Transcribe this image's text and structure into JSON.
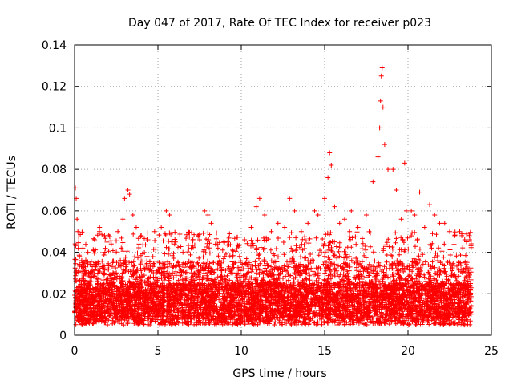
{
  "chart_data": {
    "type": "scatter",
    "title": "Day 047 of 2017, Rate Of TEC Index for receiver p023",
    "xlabel": "GPS time / hours",
    "ylabel": "ROTI / TECUs",
    "xlim": [
      0,
      25
    ],
    "ylim": [
      0,
      0.14
    ],
    "grid": true,
    "marker": "+",
    "color": "#ff0000",
    "x_ticks": [
      {
        "value": 0,
        "label": "0"
      },
      {
        "value": 5,
        "label": "5"
      },
      {
        "value": 10,
        "label": "10"
      },
      {
        "value": 15,
        "label": "15"
      },
      {
        "value": 20,
        "label": "20"
      },
      {
        "value": 25,
        "label": "25"
      }
    ],
    "y_ticks": [
      {
        "value": 0,
        "label": "0"
      },
      {
        "value": 0.02,
        "label": "0.02"
      },
      {
        "value": 0.04,
        "label": "0.04"
      },
      {
        "value": 0.06,
        "label": "0.06"
      },
      {
        "value": 0.08,
        "label": "0.08"
      },
      {
        "value": 0.1,
        "label": "0.1"
      },
      {
        "value": 0.12,
        "label": "0.12"
      },
      {
        "value": 0.14,
        "label": "0.14"
      }
    ],
    "x_range_data": [
      0,
      23.8
    ],
    "series": [
      {
        "name": "ROTI",
        "points": [
          [
            0.05,
            0.071
          ],
          [
            0.1,
            0.066
          ],
          [
            0.15,
            0.056
          ],
          [
            0.2,
            0.05
          ],
          [
            0.3,
            0.038
          ],
          [
            0.5,
            0.042
          ],
          [
            0.8,
            0.04
          ],
          [
            1.2,
            0.046
          ],
          [
            1.5,
            0.052
          ],
          [
            1.8,
            0.048
          ],
          [
            2.2,
            0.044
          ],
          [
            2.6,
            0.05
          ],
          [
            2.9,
            0.056
          ],
          [
            3.0,
            0.066
          ],
          [
            3.2,
            0.07
          ],
          [
            3.3,
            0.068
          ],
          [
            3.5,
            0.058
          ],
          [
            3.7,
            0.052
          ],
          [
            4.0,
            0.048
          ],
          [
            4.4,
            0.046
          ],
          [
            4.8,
            0.05
          ],
          [
            5.2,
            0.052
          ],
          [
            5.5,
            0.06
          ],
          [
            5.7,
            0.058
          ],
          [
            6.0,
            0.044
          ],
          [
            6.5,
            0.04
          ],
          [
            7.0,
            0.042
          ],
          [
            7.5,
            0.046
          ],
          [
            7.8,
            0.06
          ],
          [
            8.0,
            0.058
          ],
          [
            8.2,
            0.054
          ],
          [
            8.6,
            0.042
          ],
          [
            9.0,
            0.038
          ],
          [
            9.5,
            0.034
          ],
          [
            9.9,
            0.038
          ],
          [
            10.2,
            0.046
          ],
          [
            10.6,
            0.052
          ],
          [
            10.9,
            0.062
          ],
          [
            11.1,
            0.066
          ],
          [
            11.4,
            0.058
          ],
          [
            11.8,
            0.05
          ],
          [
            12.2,
            0.054
          ],
          [
            12.6,
            0.052
          ],
          [
            12.9,
            0.066
          ],
          [
            13.2,
            0.06
          ],
          [
            13.6,
            0.05
          ],
          [
            14.0,
            0.054
          ],
          [
            14.4,
            0.06
          ],
          [
            14.6,
            0.058
          ],
          [
            15.0,
            0.066
          ],
          [
            15.2,
            0.076
          ],
          [
            15.3,
            0.088
          ],
          [
            15.4,
            0.082
          ],
          [
            15.6,
            0.062
          ],
          [
            15.9,
            0.054
          ],
          [
            16.2,
            0.056
          ],
          [
            16.5,
            0.05
          ],
          [
            17.0,
            0.052
          ],
          [
            17.5,
            0.058
          ],
          [
            17.9,
            0.074
          ],
          [
            18.2,
            0.086
          ],
          [
            18.3,
            0.1
          ],
          [
            18.35,
            0.113
          ],
          [
            18.4,
            0.125
          ],
          [
            18.45,
            0.129
          ],
          [
            18.5,
            0.11
          ],
          [
            18.6,
            0.092
          ],
          [
            18.8,
            0.08
          ],
          [
            19.1,
            0.08
          ],
          [
            19.3,
            0.07
          ],
          [
            19.6,
            0.056
          ],
          [
            19.9,
            0.06
          ],
          [
            20.2,
            0.06
          ],
          [
            20.4,
            0.058
          ],
          [
            20.7,
            0.069
          ],
          [
            21.0,
            0.052
          ],
          [
            21.3,
            0.063
          ],
          [
            21.6,
            0.058
          ],
          [
            21.9,
            0.054
          ],
          [
            22.2,
            0.054
          ],
          [
            22.5,
            0.05
          ],
          [
            22.8,
            0.048
          ],
          [
            23.1,
            0.05
          ],
          [
            23.4,
            0.046
          ],
          [
            23.7,
            0.046
          ],
          [
            19.8,
            0.083
          ],
          [
            16.6,
            0.06
          ],
          [
            9.7,
            0.03
          ]
        ]
      }
    ]
  }
}
